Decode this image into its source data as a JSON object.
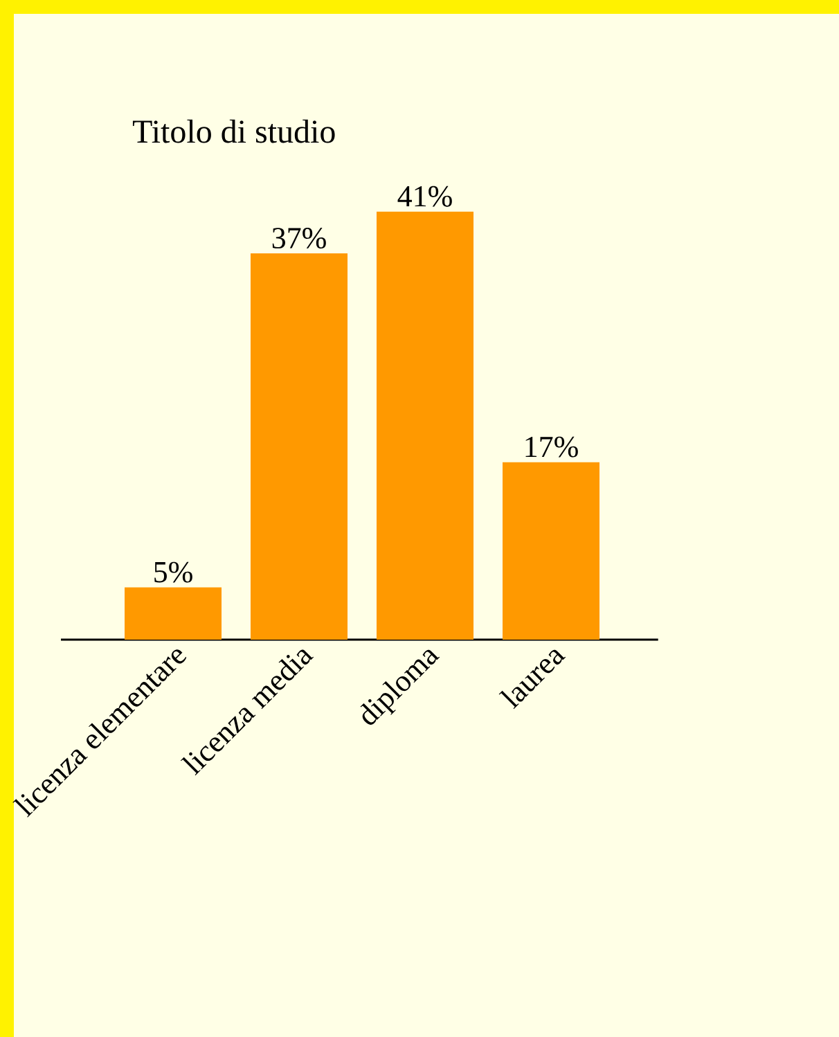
{
  "chart_data": {
    "type": "bar",
    "title": "Titolo di studio",
    "categories": [
      "licenza elementare",
      "licenza media",
      "diploma",
      "laurea"
    ],
    "values": [
      5,
      37,
      41,
      17
    ],
    "value_labels": [
      "5%",
      "37%",
      "41%",
      "17%"
    ],
    "color": "#ff9900"
  }
}
